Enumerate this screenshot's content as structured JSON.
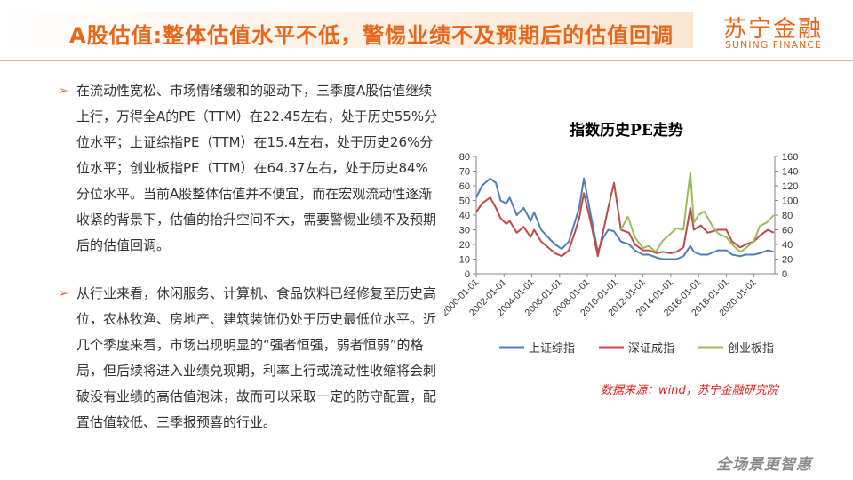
{
  "header": {
    "title": "A股估值:整体估值水平不低，警惕业绩不及预期后的估值回调",
    "logo_cn": "苏宁金融",
    "logo_en": "SUNING FINANCE"
  },
  "bullets": [
    {
      "arrow": "➢",
      "text": "在流动性宽松、市场情绪缓和的驱动下，三季度A股估值继续上行，万得全A的PE（TTM）在22.45左右，处于历史55%分位水平；上证综指PE（TTM）在15.4左右，处于历史26%分位水平；创业板指PE（TTM）在64.37左右，处于历史84%分位水平。当前A股整体估值并不便宜，而在宏观流动性逐渐收紧的背景下，估值的抬升空间不大，需要警惕业绩不及预期后的估值回调。"
    },
    {
      "arrow": "➢",
      "text": "从行业来看，休闲服务、计算机、食品饮料已经修复至历史高位，农林牧渔、房地产、建筑装饰仍处于历史最低位水平。近几个季度来看，市场出现明显的“强者恒强，弱者恒弱”的格局，但后续将进入业绩兑现期，利率上行或流动性收缩将会刺破没有业绩的高估值泡沫，故而可以采取一定的防守配置，配置估值较低、三季报预喜的行业。"
    }
  ],
  "source": "数据来源：wind，苏宁金融研究院",
  "footer": {
    "slogan": "全场景更智惠"
  },
  "colors": {
    "accent": "#e8671b",
    "series_shanghai": "#4f7fb9",
    "series_shenzhen": "#bf4a4a",
    "series_chinext": "#9bbb59",
    "source": "#e0201f"
  },
  "chart_data": {
    "type": "line",
    "title": "指数历史PE走势",
    "x_tick_labels": [
      "2000-01-01",
      "2002-01-01",
      "2004-01-01",
      "2006-01-01",
      "2008-01-01",
      "2010-01-01",
      "2012-01-01",
      "2014-01-01",
      "2016-01-01",
      "2018-01-01",
      "2020-01-01"
    ],
    "xlim": [
      "2000-01-01",
      "2021-06-30"
    ],
    "y_left": {
      "min": 0,
      "max": 80,
      "ticks": [
        0,
        10,
        20,
        30,
        40,
        50,
        60,
        70,
        80
      ]
    },
    "y_right": {
      "min": 0,
      "max": 160,
      "ticks": [
        0,
        20,
        40,
        60,
        80,
        100,
        120,
        140,
        160
      ]
    },
    "legend_position": "bottom",
    "grid": false,
    "series": [
      {
        "name": "上证综指",
        "axis": "left",
        "color": "#4f7fb9",
        "x": [
          "2000-01-01",
          "2000-06-01",
          "2001-01-01",
          "2001-06-01",
          "2001-10-01",
          "2002-03-01",
          "2002-06-01",
          "2002-12-01",
          "2003-06-01",
          "2003-12-01",
          "2004-03-01",
          "2004-09-01",
          "2005-03-01",
          "2005-09-01",
          "2006-03-01",
          "2006-09-01",
          "2007-02-01",
          "2007-06-01",
          "2007-10-01",
          "2008-04-01",
          "2008-10-01",
          "2009-03-01",
          "2009-07-01",
          "2009-12-01",
          "2010-06-01",
          "2011-01-01",
          "2011-06-01",
          "2012-01-01",
          "2012-06-01",
          "2013-01-01",
          "2013-06-01",
          "2014-01-01",
          "2014-06-01",
          "2014-12-01",
          "2015-06-01",
          "2015-09-01",
          "2016-03-01",
          "2016-09-01",
          "2017-06-01",
          "2018-01-01",
          "2018-06-01",
          "2019-01-01",
          "2019-06-01",
          "2020-01-01",
          "2020-06-01",
          "2021-01-01",
          "2021-06-01"
        ],
        "values": [
          52,
          60,
          65,
          62,
          50,
          48,
          52,
          40,
          45,
          36,
          42,
          30,
          25,
          20,
          17,
          22,
          35,
          45,
          65,
          40,
          15,
          25,
          30,
          29,
          22,
          20,
          16,
          13,
          13,
          11,
          10,
          10,
          10,
          12,
          19,
          15,
          13,
          13,
          16,
          16,
          13,
          12,
          13,
          13,
          14,
          16,
          15
        ]
      },
      {
        "name": "深证成指",
        "axis": "left",
        "color": "#bf4a4a",
        "x": [
          "2000-01-01",
          "2000-06-01",
          "2001-01-01",
          "2001-06-01",
          "2001-10-01",
          "2002-03-01",
          "2002-06-01",
          "2002-12-01",
          "2003-06-01",
          "2003-12-01",
          "2004-03-01",
          "2004-09-01",
          "2005-03-01",
          "2005-09-01",
          "2006-03-01",
          "2006-09-01",
          "2007-02-01",
          "2007-06-01",
          "2007-10-01",
          "2008-04-01",
          "2008-10-01",
          "2009-03-01",
          "2009-07-01",
          "2009-12-01",
          "2010-06-01",
          "2011-01-01",
          "2011-06-01",
          "2012-01-01",
          "2012-06-01",
          "2013-01-01",
          "2013-06-01",
          "2014-01-01",
          "2014-06-01",
          "2014-12-01",
          "2015-06-01",
          "2015-09-01",
          "2016-03-01",
          "2016-09-01",
          "2017-06-01",
          "2018-01-01",
          "2018-06-01",
          "2019-01-01",
          "2019-06-01",
          "2020-01-01",
          "2020-06-01",
          "2021-01-01",
          "2021-06-01"
        ],
        "values": [
          42,
          48,
          52,
          45,
          38,
          34,
          36,
          28,
          32,
          25,
          30,
          22,
          18,
          14,
          12,
          16,
          28,
          38,
          55,
          35,
          12,
          30,
          45,
          62,
          30,
          28,
          20,
          16,
          16,
          14,
          15,
          14,
          15,
          18,
          45,
          30,
          33,
          28,
          30,
          30,
          22,
          18,
          20,
          22,
          26,
          30,
          28
        ]
      },
      {
        "name": "创业板指",
        "axis": "right",
        "color": "#9bbb59",
        "x": [
          "2010-06-01",
          "2010-12-01",
          "2011-06-01",
          "2012-01-01",
          "2012-06-01",
          "2012-12-01",
          "2013-06-01",
          "2014-01-01",
          "2014-06-01",
          "2014-12-01",
          "2015-03-01",
          "2015-06-01",
          "2015-09-01",
          "2016-01-01",
          "2016-06-01",
          "2017-01-01",
          "2017-06-01",
          "2018-01-01",
          "2018-06-01",
          "2019-01-01",
          "2019-06-01",
          "2020-01-01",
          "2020-06-01",
          "2020-12-01",
          "2021-06-01"
        ],
        "values": [
          60,
          78,
          50,
          35,
          38,
          30,
          45,
          55,
          62,
          60,
          100,
          138,
          70,
          80,
          85,
          65,
          55,
          50,
          40,
          30,
          35,
          45,
          65,
          70,
          80
        ]
      }
    ]
  }
}
